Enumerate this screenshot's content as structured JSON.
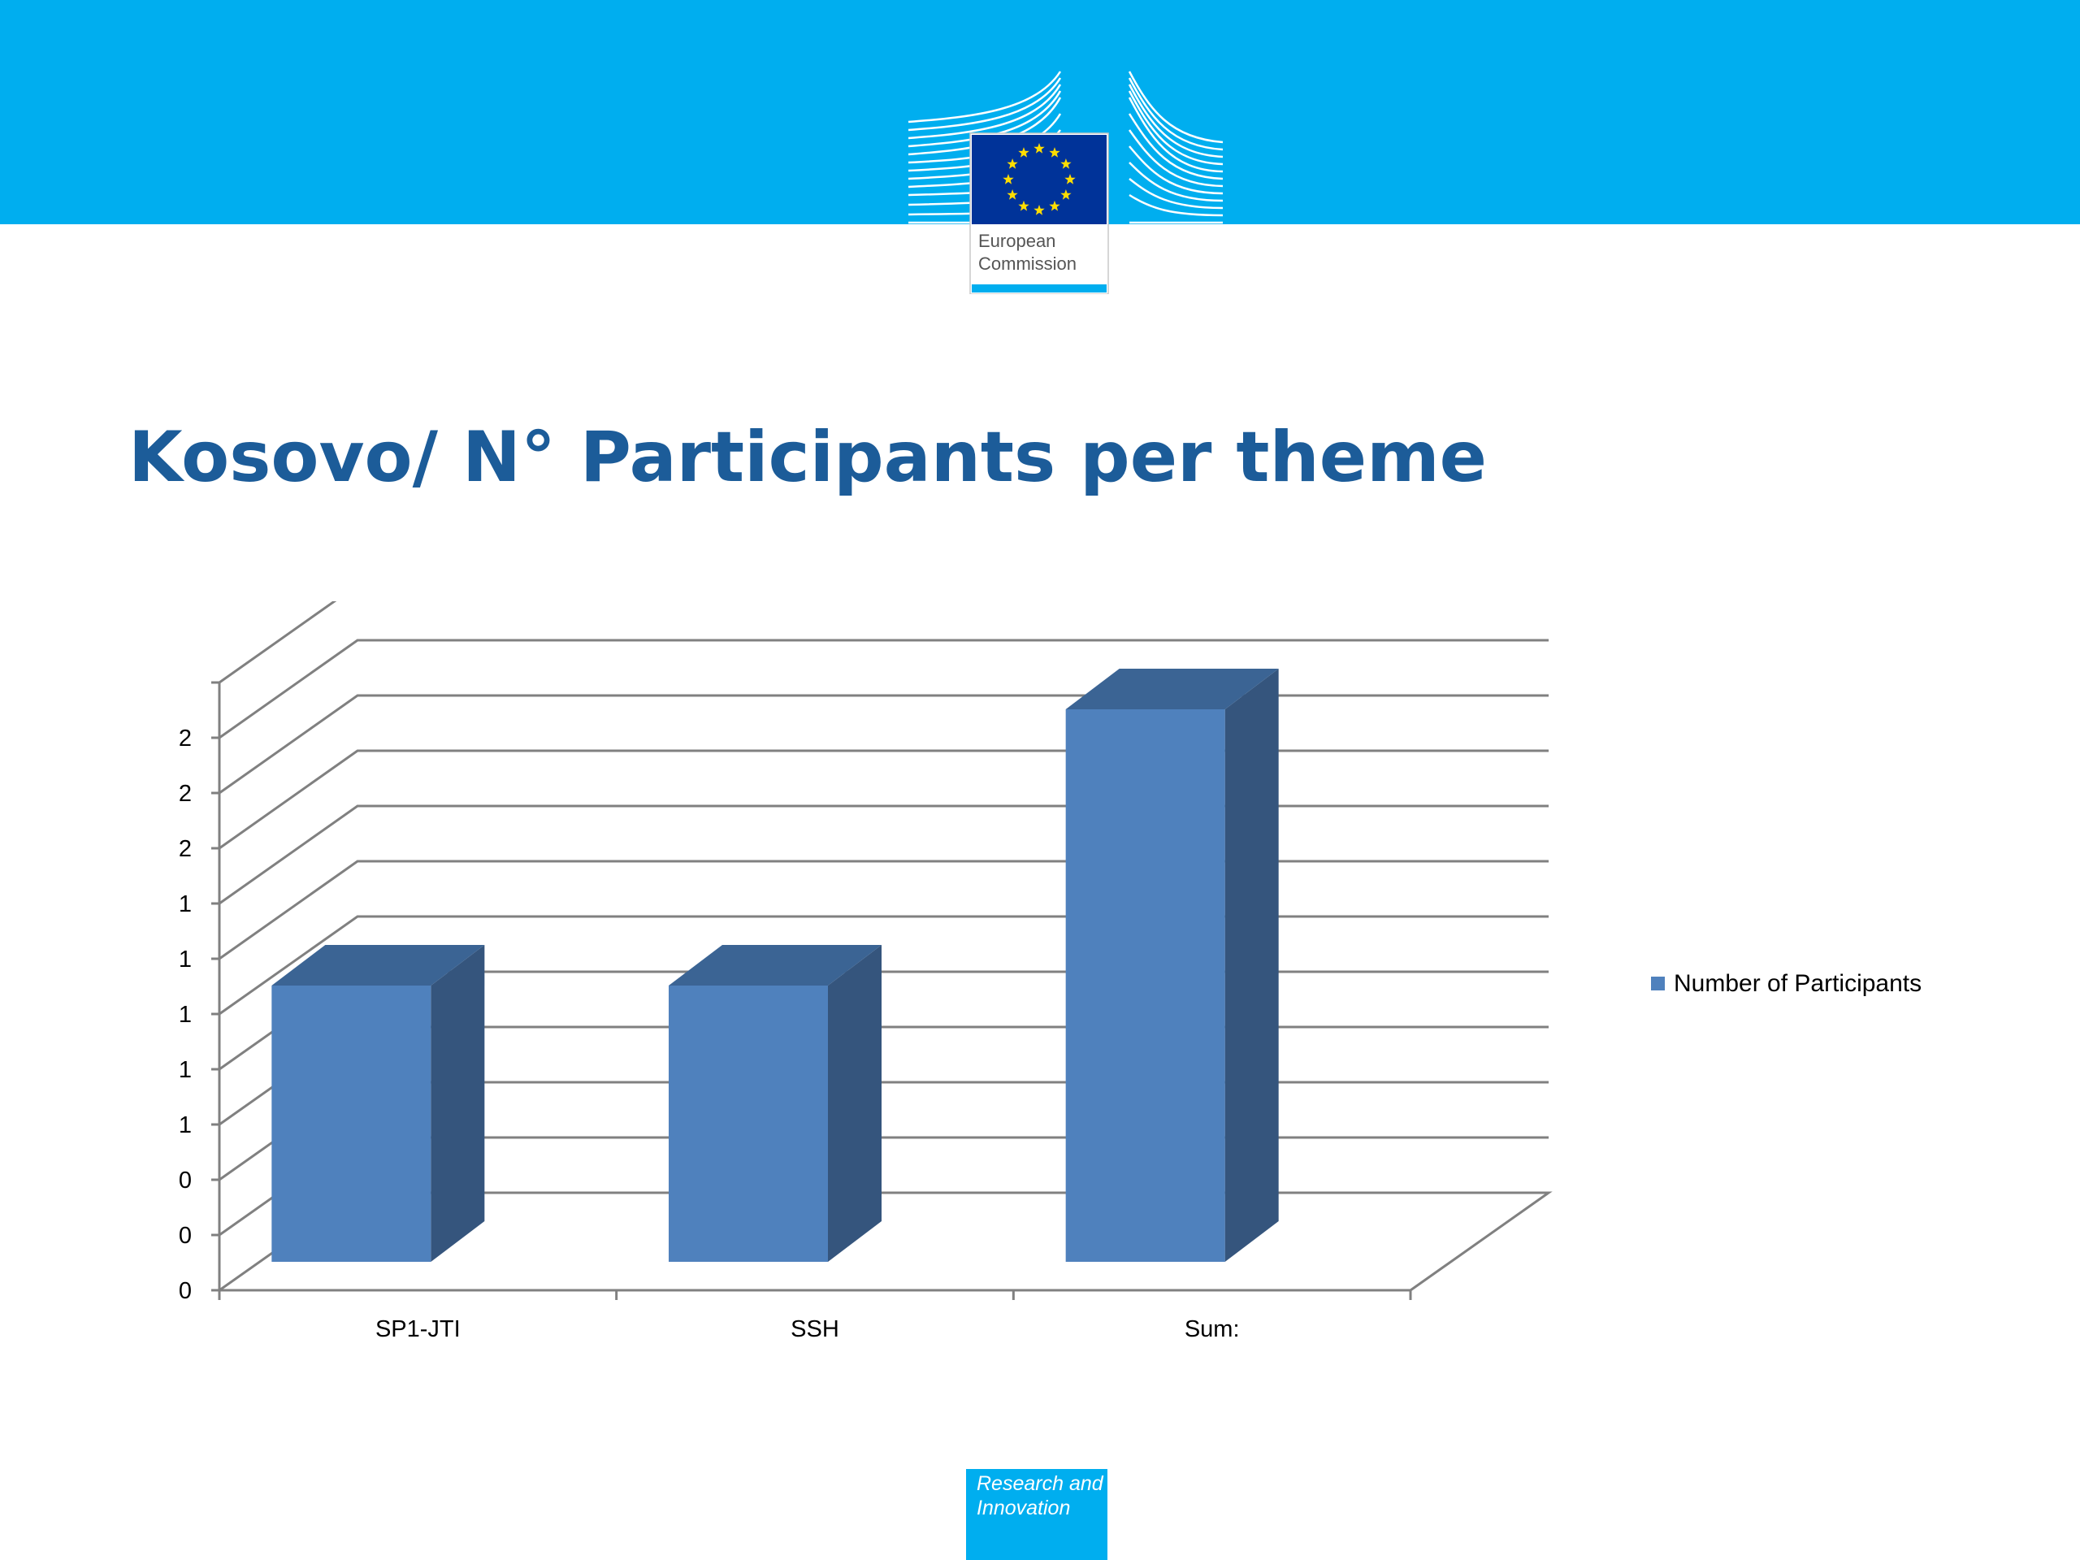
{
  "colors": {
    "header_band": "#00AEEF",
    "title": "#1C5C99",
    "bar_front": "#4F81BD",
    "bar_top": "#3B6494",
    "bar_side": "#35557D",
    "eu_flag": "#003399",
    "eu_stars": "#FFDD00",
    "badge": "#00AEEF",
    "grid": "#808080"
  },
  "header": {
    "logo_icon": "european-commission-building-logo",
    "logo_line1": "European",
    "logo_line2": "Commission"
  },
  "slide": {
    "title": "Kosovo/ N° Participants per theme"
  },
  "footer": {
    "badge_line1": "Research and",
    "badge_line2": "Innovation"
  },
  "chart_data": {
    "type": "bar",
    "categories": [
      "SP1-JTI",
      "SSH",
      "Sum:"
    ],
    "series": [
      {
        "name": "Number of Participants",
        "values": [
          1,
          1,
          2
        ]
      }
    ],
    "ylim": [
      0,
      2.2
    ],
    "yticks": [
      0,
      0.2,
      0.4,
      0.6,
      0.8,
      1.0,
      1.2,
      1.4,
      1.6,
      1.8,
      2.0
    ],
    "ytick_labels": [
      "0",
      "0",
      "0",
      "1",
      "1",
      "1",
      "1",
      "1",
      "2",
      "2",
      "2"
    ],
    "grid": true,
    "three_d": true,
    "legend": "right"
  }
}
